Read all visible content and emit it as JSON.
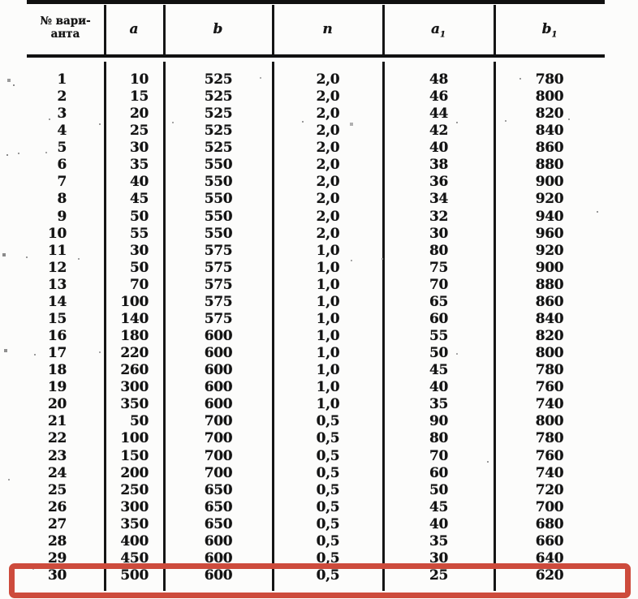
{
  "table": {
    "columns": [
      {
        "key": "variant",
        "label_line1": "№ вари-",
        "label_line2": "анта"
      },
      {
        "key": "a",
        "label": "a"
      },
      {
        "key": "b",
        "label": "b"
      },
      {
        "key": "n",
        "label": "n"
      },
      {
        "key": "a1",
        "label": "a",
        "sub": "1"
      },
      {
        "key": "b1",
        "label": "b",
        "sub": "1"
      }
    ],
    "rows": [
      [
        "1",
        "10",
        "525",
        "2,0",
        "48",
        "780"
      ],
      [
        "2",
        "15",
        "525",
        "2,0",
        "46",
        "800"
      ],
      [
        "3",
        "20",
        "525",
        "2,0",
        "44",
        "820"
      ],
      [
        "4",
        "25",
        "525",
        "2,0",
        "42",
        "840"
      ],
      [
        "5",
        "30",
        "525",
        "2,0",
        "40",
        "860"
      ],
      [
        "6",
        "35",
        "550",
        "2,0",
        "38",
        "880"
      ],
      [
        "7",
        "40",
        "550",
        "2,0",
        "36",
        "900"
      ],
      [
        "8",
        "45",
        "550",
        "2,0",
        "34",
        "920"
      ],
      [
        "9",
        "50",
        "550",
        "2,0",
        "32",
        "940"
      ],
      [
        "10",
        "55",
        "550",
        "2,0",
        "30",
        "960"
      ],
      [
        "11",
        "30",
        "575",
        "1,0",
        "80",
        "920"
      ],
      [
        "12",
        "50",
        "575",
        "1,0",
        "75",
        "900"
      ],
      [
        "13",
        "70",
        "575",
        "1,0",
        "70",
        "880"
      ],
      [
        "14",
        "100",
        "575",
        "1,0",
        "65",
        "860"
      ],
      [
        "15",
        "140",
        "575",
        "1,0",
        "60",
        "840"
      ],
      [
        "16",
        "180",
        "600",
        "1,0",
        "55",
        "820"
      ],
      [
        "17",
        "220",
        "600",
        "1,0",
        "50",
        "800"
      ],
      [
        "18",
        "260",
        "600",
        "1,0",
        "45",
        "780"
      ],
      [
        "19",
        "300",
        "600",
        "1,0",
        "40",
        "760"
      ],
      [
        "20",
        "350",
        "600",
        "1,0",
        "35",
        "740"
      ],
      [
        "21",
        "50",
        "700",
        "0,5",
        "90",
        "800"
      ],
      [
        "22",
        "100",
        "700",
        "0,5",
        "80",
        "780"
      ],
      [
        "23",
        "150",
        "700",
        "0,5",
        "70",
        "760"
      ],
      [
        "24",
        "200",
        "700",
        "0,5",
        "60",
        "740"
      ],
      [
        "25",
        "250",
        "650",
        "0,5",
        "50",
        "720"
      ],
      [
        "26",
        "300",
        "650",
        "0,5",
        "45",
        "700"
      ],
      [
        "27",
        "350",
        "650",
        "0,5",
        "40",
        "680"
      ],
      [
        "28",
        "400",
        "600",
        "0,5",
        "35",
        "660"
      ],
      [
        "29",
        "450",
        "600",
        "0,5",
        "30",
        "640"
      ],
      [
        "30",
        "500",
        "600",
        "0,5",
        "25",
        "620"
      ]
    ]
  },
  "highlight": {
    "highlighted_row": "30",
    "color": "#cd4b3c"
  }
}
